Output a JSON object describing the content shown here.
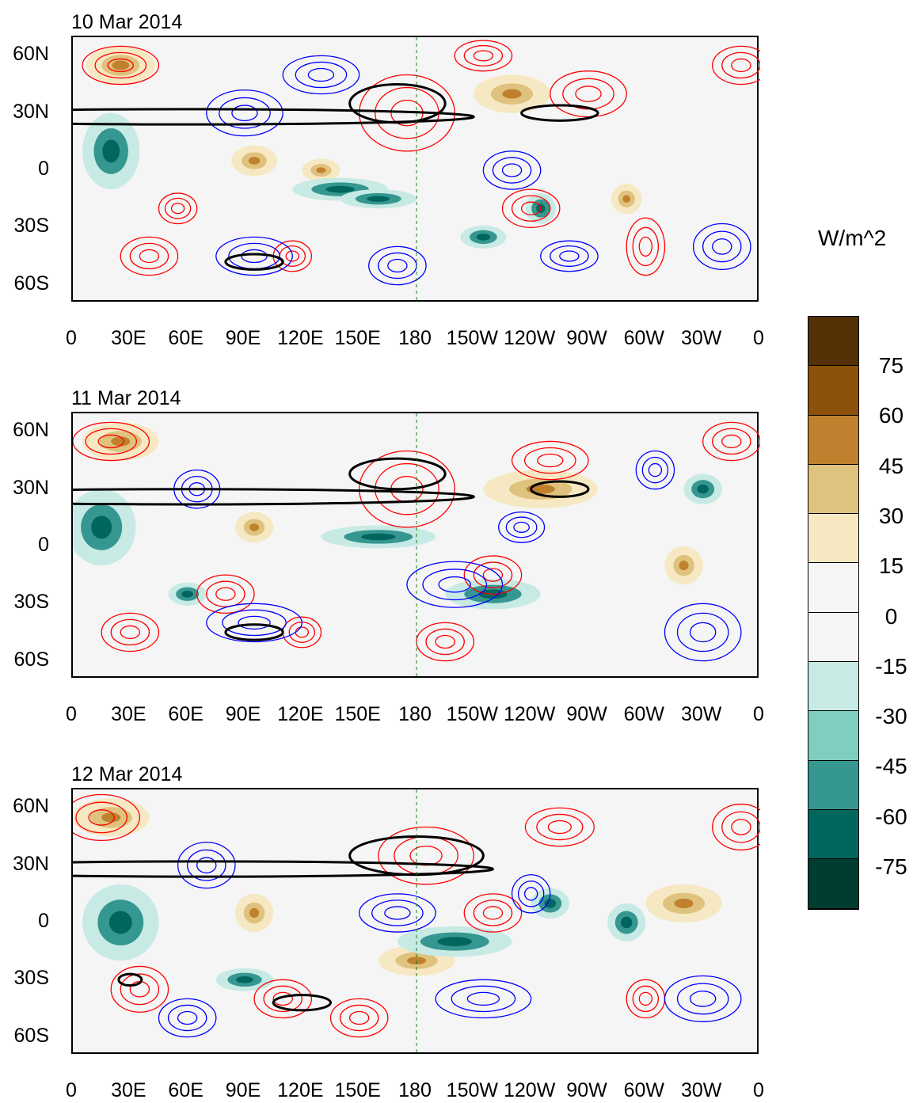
{
  "panels": [
    {
      "title": "10 Mar 2014"
    },
    {
      "title": "11 Mar 2014"
    },
    {
      "title": "12 Mar 2014"
    }
  ],
  "lat_labels": [
    "60N",
    "30N",
    "0",
    "30S",
    "60S"
  ],
  "lon_labels": [
    "0",
    "30E",
    "60E",
    "90E",
    "120E",
    "150E",
    "180",
    "150W",
    "120W",
    "90W",
    "60W",
    "30W",
    "0"
  ],
  "colorbar": {
    "unit": "W/m^2",
    "labels": [
      "75",
      "60",
      "45",
      "30",
      "15",
      "0",
      "-15",
      "-30",
      "-45",
      "-60",
      "-75"
    ],
    "colors": [
      "#543005",
      "#8c510a",
      "#bf812d",
      "#dfc27d",
      "#f6e8c3",
      "#f5f5f5",
      "#f5f5f5",
      "#c7eae5",
      "#80cdc1",
      "#35978f",
      "#01665e",
      "#003c30"
    ]
  },
  "contour_colors": {
    "positive": "#ff0000",
    "negative": "#0000ff",
    "jet": "#000000",
    "coast": "#1a7a1a"
  }
}
